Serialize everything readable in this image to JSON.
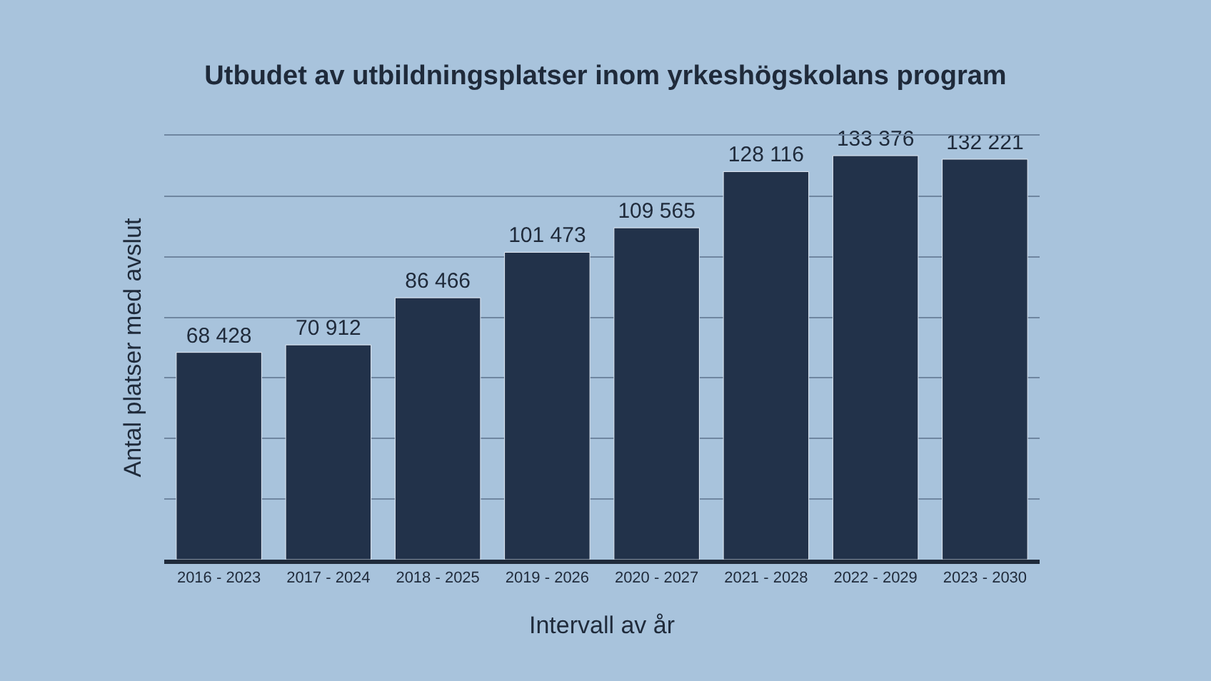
{
  "chart_data": {
    "type": "bar",
    "title": "Utbudet av utbildningsplatser inom yrkeshögskolans program",
    "xlabel": "Intervall av år",
    "ylabel": "Antal platser med avslut",
    "categories": [
      "2016 - 2023",
      "2017 - 2024",
      "2018 - 2025",
      "2019 - 2026",
      "2020 - 2027",
      "2021 - 2028",
      "2022 - 2029",
      "2023 - 2030"
    ],
    "values": [
      68428,
      70912,
      86466,
      101473,
      109565,
      128116,
      133376,
      132221
    ],
    "value_labels": [
      "68 428",
      "70 912",
      "86 466",
      "101 473",
      "109 565",
      "128 116",
      "133 376",
      "132 221"
    ],
    "color": "#22324a",
    "ylim": [
      0,
      140000
    ],
    "yticks": [
      {
        "value": 0,
        "label": null
      },
      {
        "value": 20000,
        "label": null
      },
      {
        "value": 40000,
        "label": null
      },
      {
        "value": 60000,
        "label": null
      },
      {
        "value": 80000,
        "label": null
      },
      {
        "value": 100000,
        "label": null
      },
      {
        "value": 120000,
        "label": null
      },
      {
        "value": 140000,
        "label": null
      }
    ],
    "grid": "y",
    "tick_labels": "x"
  }
}
